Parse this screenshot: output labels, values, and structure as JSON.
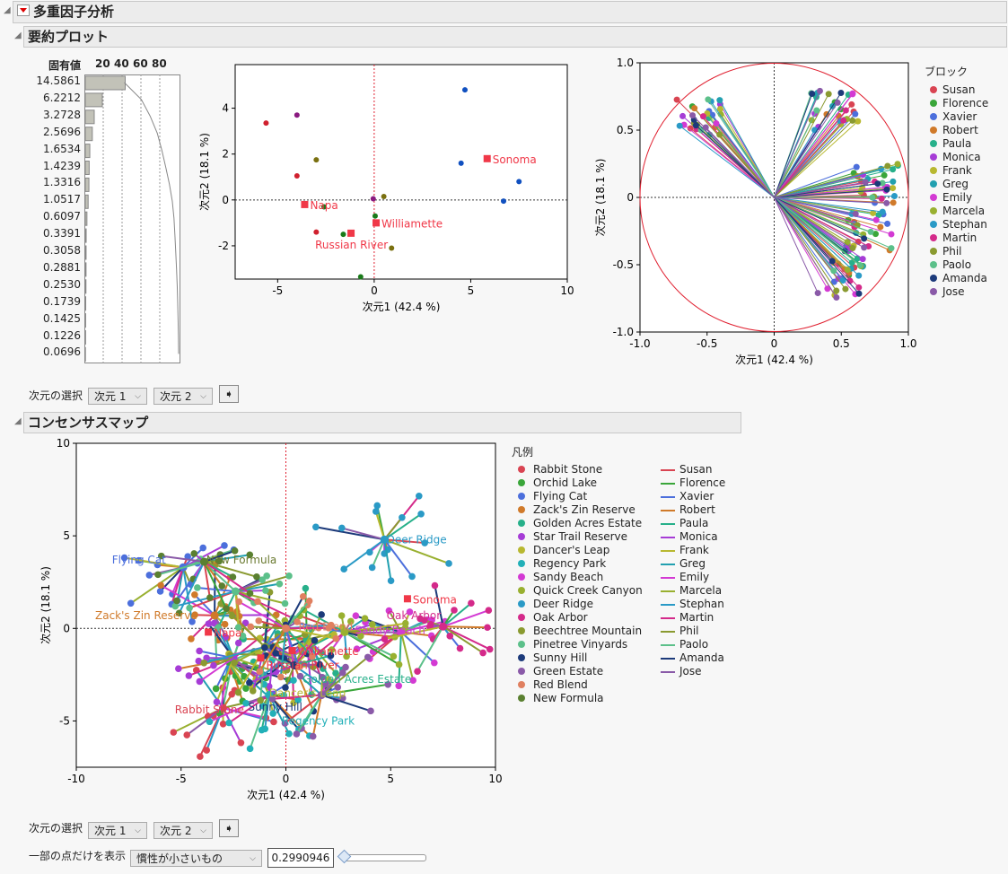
{
  "title": "多重因子分析",
  "summary": {
    "title": "要約プロット",
    "eig_header": "固有値",
    "eig_ticks": [
      "20",
      "40",
      "60",
      "80"
    ],
    "eigenvalues": [
      14.5861,
      6.2212,
      3.2728,
      2.5696,
      1.6534,
      1.4239,
      1.3316,
      1.0517,
      0.6097,
      0.3391,
      0.3058,
      0.2881,
      0.253,
      0.1739,
      0.1425,
      0.1226,
      0.0696
    ],
    "eigen_labels": [
      "14.5861",
      "6.2212",
      "3.2728",
      "2.5696",
      "1.6534",
      "1.4239",
      "1.3316",
      "1.0517",
      "0.6097",
      "0.3391",
      "0.3058",
      "0.2881",
      "0.2530",
      "0.1739",
      "0.1425",
      "0.1226",
      "0.0696"
    ]
  },
  "chart_data": [
    {
      "type": "scatter",
      "xlabel": "次元1 (42.4 %)",
      "ylabel": "次元2 (18.1 %)",
      "xlim": [
        -7.2,
        10
      ],
      "ylim": [
        -3.45,
        5.9
      ],
      "xticks": [
        -5,
        0,
        5,
        10
      ],
      "yticks": [
        -2,
        0,
        2,
        4
      ],
      "points": [
        {
          "x": -5.6,
          "y": 3.35,
          "color": "#d0202e"
        },
        {
          "x": -4,
          "y": 3.7,
          "color": "#8a1a80"
        },
        {
          "x": -4,
          "y": 1.05,
          "color": "#d0202e"
        },
        {
          "x": -3,
          "y": 1.75,
          "color": "#7a7010"
        },
        {
          "x": -3,
          "y": -1.4,
          "color": "#d0202e"
        },
        {
          "x": -2.6,
          "y": -0.3,
          "color": "#1a7a1a"
        },
        {
          "x": -1.6,
          "y": -1.5,
          "color": "#1a7a1a"
        },
        {
          "x": -0.7,
          "y": -3.35,
          "color": "#1a7a1a"
        },
        {
          "x": -0.05,
          "y": 0.05,
          "color": "#8a1a80"
        },
        {
          "x": 0.05,
          "y": -0.7,
          "color": "#1a7a1a"
        },
        {
          "x": 0.5,
          "y": 0.15,
          "color": "#7a7010"
        },
        {
          "x": 0.9,
          "y": -2.1,
          "color": "#7a7010"
        },
        {
          "x": 4.7,
          "y": 4.8,
          "color": "#1050c0"
        },
        {
          "x": 4.5,
          "y": 1.6,
          "color": "#1050c0"
        },
        {
          "x": 6.7,
          "y": -0.05,
          "color": "#1050c0"
        },
        {
          "x": 7.5,
          "y": 0.8,
          "color": "#1050c0"
        }
      ],
      "groups": [
        {
          "label": "Sonoma",
          "x": 5.85,
          "y": 1.8
        },
        {
          "label": "Napa",
          "x": -3.6,
          "y": -0.2
        },
        {
          "label": "Williamette",
          "x": 0.1,
          "y": -1.0
        },
        {
          "label": "Russian River",
          "x": -1.2,
          "y": -1.45
        }
      ],
      "group_color": "#f03848"
    },
    {
      "type": "scatter",
      "subtype": "correlation-circle",
      "xlabel": "次元1 (42.4 %)",
      "ylabel": "次元2 (18.1 %)",
      "xlim": [
        -1,
        1
      ],
      "ylim": [
        -1,
        1
      ],
      "xticks": [
        "-1.0",
        "-0.5",
        "0",
        "0.5",
        "1.0"
      ],
      "yticks": [
        "1.0",
        "0.5",
        "0",
        "-0.5",
        "-1.0"
      ],
      "legend_title": "ブロック",
      "legend_placement": "right",
      "blocks": [
        {
          "name": "Susan",
          "color": "#d94452"
        },
        {
          "name": "Florence",
          "color": "#3aa63a"
        },
        {
          "name": "Xavier",
          "color": "#4c6fdc"
        },
        {
          "name": "Robert",
          "color": "#d07a2a"
        },
        {
          "name": "Paula",
          "color": "#27b08a"
        },
        {
          "name": "Monica",
          "color": "#a63cd6"
        },
        {
          "name": "Frank",
          "color": "#b8b830"
        },
        {
          "name": "Greg",
          "color": "#22a0b0"
        },
        {
          "name": "Emily",
          "color": "#d33ad3"
        },
        {
          "name": "Marcela",
          "color": "#99b030"
        },
        {
          "name": "Stephan",
          "color": "#2a9ac6"
        },
        {
          "name": "Martin",
          "color": "#d42a8a"
        },
        {
          "name": "Phil",
          "color": "#8a9a30"
        },
        {
          "name": "Paolo",
          "color": "#5cc08a"
        },
        {
          "name": "Amanda",
          "color": "#1c3a7a"
        },
        {
          "name": "Jose",
          "color": "#8a5aa8"
        }
      ],
      "loading_clusters": [
        {
          "x": -0.55,
          "y": 0.6
        },
        {
          "x": 0.45,
          "y": 0.65
        },
        {
          "x": 0.75,
          "y": 0.1
        },
        {
          "x": 0.7,
          "y": -0.25
        },
        {
          "x": 0.5,
          "y": -0.6
        }
      ]
    },
    {
      "type": "scatter",
      "subtype": "consensus-star-map",
      "title": "",
      "xlabel": "次元1 (42.4 %)",
      "ylabel": "次元2 (18.1 %)",
      "xlim": [
        -10,
        10
      ],
      "ylim": [
        -7.5,
        10
      ],
      "xticks": [
        -10,
        -5,
        0,
        5,
        10
      ],
      "yticks": [
        -5,
        0,
        5,
        10
      ],
      "legend_title": "凡例",
      "legend_placement": "right",
      "products": [
        {
          "name": "Rabbit Stone",
          "color": "#d94452",
          "x": -3,
          "y": -4.3
        },
        {
          "name": "Orchid Lake",
          "color": "#3aa63a",
          "x": -2.7,
          "y": -1.8
        },
        {
          "name": "Flying Cat",
          "color": "#4c6fdc",
          "x": -4.9,
          "y": 3.3
        },
        {
          "name": "Zack's Zin Reserve",
          "color": "#d07a2a",
          "x": -3.4,
          "y": 0.7
        },
        {
          "name": "Golden Acres Estate",
          "color": "#27b08a",
          "x": 1.0,
          "y": -0.6
        },
        {
          "name": "Star Trail Reserve",
          "color": "#a63cd6",
          "x": -2.5,
          "y": -1.6
        },
        {
          "name": "Dancer's Leap",
          "color": "#b8b830",
          "x": 0.3,
          "y": -1.5
        },
        {
          "name": "Regency Park",
          "color": "#22b0b8",
          "x": -0.8,
          "y": -3.6
        },
        {
          "name": "Sandy Beach",
          "color": "#d33ad3",
          "x": 5.5,
          "y": -0.2
        },
        {
          "name": "Quick Creek Canyon",
          "color": "#99b030",
          "x": 2.8,
          "y": -0.2
        },
        {
          "name": "Deer Ridge",
          "color": "#2a9ac6",
          "x": 4.7,
          "y": 4.8
        },
        {
          "name": "Oak Arbor",
          "color": "#d42a8a",
          "x": 7.5,
          "y": 0.1
        },
        {
          "name": "Beechtree Mountain",
          "color": "#8a9a30",
          "x": -1.0,
          "y": -1.0
        },
        {
          "name": "Pinetree Vinyards",
          "color": "#5cc08a",
          "x": -2.4,
          "y": 2.0
        },
        {
          "name": "Sunny Hill",
          "color": "#1c3a7a",
          "x": 0.4,
          "y": -2.0
        },
        {
          "name": "Green Estate",
          "color": "#8a5aa8",
          "x": 1.7,
          "y": -3.6
        },
        {
          "name": "Red Blend",
          "color": "#e08060",
          "x": 0.0,
          "y": 0.0
        },
        {
          "name": "New Formula",
          "color": "#5a8030",
          "x": -3.9,
          "y": 3.6
        }
      ],
      "labels": [
        {
          "text": "Flying Cat",
          "x": -8.3,
          "y": 3.5,
          "color": "#4c6fdc"
        },
        {
          "text": "New Formula",
          "x": -3.8,
          "y": 3.5,
          "color": "#6a7a30"
        },
        {
          "text": "Zack's Zin Reserve",
          "x": -9.1,
          "y": 0.5,
          "color": "#d07a2a"
        },
        {
          "text": "Deer Ridge",
          "x": 4.8,
          "y": 4.6,
          "color": "#2a9ac6"
        },
        {
          "text": "Oak Arbor",
          "x": 4.8,
          "y": 0.5,
          "color": "#d42a8a"
        },
        {
          "text": "Sandy Beach",
          "x": 3.3,
          "y": -0.3,
          "color": "#d33ad3"
        },
        {
          "text": "Golden Acres Estate",
          "x": 0.8,
          "y": -1.1,
          "color": "#27b08a"
        },
        {
          "text": "Red Blend",
          "x": 0.6,
          "y": -0.1,
          "color": "#e08060"
        },
        {
          "text": "Dancer's Leap",
          "x": -0.8,
          "y": -2.0,
          "color": "#b8b830"
        },
        {
          "text": "Sunny Hill",
          "x": -1.8,
          "y": -2.9,
          "color": "#1c3a7a"
        },
        {
          "text": "Regency Park",
          "x": -0.2,
          "y": -3.6,
          "color": "#22b0b8"
        },
        {
          "text": "Rabbit Stone",
          "x": -5.3,
          "y": -4.6,
          "color": "#d94452"
        }
      ],
      "groups": [
        {
          "label": "Sonoma",
          "x": 5.8,
          "y": 1.6
        },
        {
          "label": "Napa",
          "x": -3.7,
          "y": -0.2
        },
        {
          "label": "Williamette",
          "x": 0.3,
          "y": -1.2
        },
        {
          "label": "Russian River",
          "x": -1.2,
          "y": -1.6
        }
      ]
    }
  ],
  "summary_controls": {
    "label": "次元の選択",
    "dim_x": "次元 1",
    "dim_y": "次元 2"
  },
  "consensus": {
    "title": "コンセンサスマップ"
  },
  "consensus_controls": {
    "label": "次元の選択",
    "dim_x": "次元 1",
    "dim_y": "次元 2",
    "subset_label": "一部の点だけを表示",
    "subset_option": "慣性が小さいもの",
    "threshold": "0.2990946",
    "slider_fraction": 0.0
  }
}
